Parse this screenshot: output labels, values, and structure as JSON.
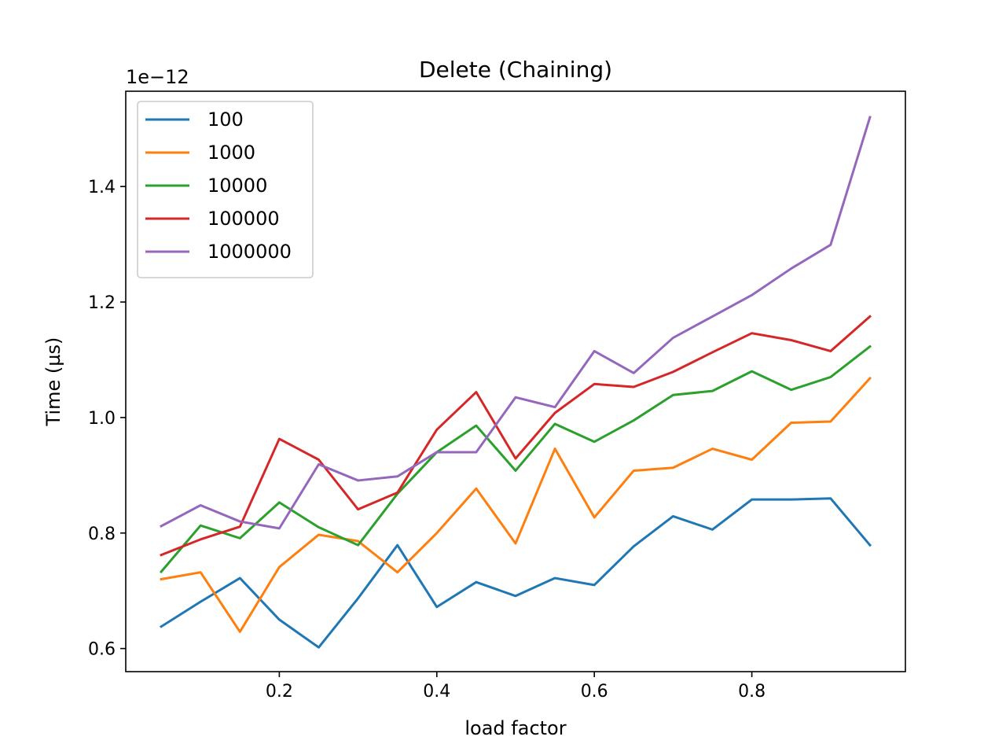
{
  "chart_data": {
    "type": "line",
    "title": "Delete (Chaining)",
    "xlabel": "load factor",
    "ylabel": "Time (µs)",
    "y_offset_text": "1e−12",
    "xlim": [
      0.005,
      0.995
    ],
    "ylim": [
      0.56,
      1.565
    ],
    "x_ticks": [
      0.2,
      0.4,
      0.6,
      0.8
    ],
    "x_tick_labels": [
      "0.2",
      "0.4",
      "0.6",
      "0.8"
    ],
    "y_ticks": [
      0.6,
      0.8,
      1.0,
      1.2,
      1.4
    ],
    "y_tick_labels": [
      "0.6",
      "0.8",
      "1.0",
      "1.2",
      "1.4"
    ],
    "grid": false,
    "legend_position": "top-left",
    "x": [
      0.05,
      0.1,
      0.15,
      0.2,
      0.25,
      0.3,
      0.35,
      0.4,
      0.45,
      0.5,
      0.55,
      0.6,
      0.65,
      0.7,
      0.75,
      0.8,
      0.85,
      0.9,
      0.95
    ],
    "series": [
      {
        "name": "100",
        "color": "#1f77b4",
        "values": [
          0.638,
          0.681,
          0.722,
          0.65,
          0.602,
          0.687,
          0.779,
          0.672,
          0.715,
          0.691,
          0.722,
          0.71,
          0.777,
          0.829,
          0.806,
          0.858,
          0.858,
          0.86,
          0.779
        ]
      },
      {
        "name": "1000",
        "color": "#ff7f0e",
        "values": [
          0.72,
          0.732,
          0.629,
          0.741,
          0.797,
          0.786,
          0.732,
          0.8,
          0.877,
          0.782,
          0.946,
          0.827,
          0.908,
          0.913,
          0.946,
          0.927,
          0.991,
          0.993,
          1.068
        ]
      },
      {
        "name": "10000",
        "color": "#2ca02c",
        "values": [
          0.733,
          0.813,
          0.791,
          0.853,
          0.81,
          0.779,
          0.868,
          0.94,
          0.986,
          0.908,
          0.989,
          0.958,
          0.995,
          1.039,
          1.046,
          1.08,
          1.048,
          1.07,
          1.123
        ]
      },
      {
        "name": "100000",
        "color": "#d62728",
        "values": [
          0.762,
          0.789,
          0.811,
          0.963,
          0.927,
          0.841,
          0.87,
          0.979,
          1.044,
          0.929,
          1.008,
          1.058,
          1.053,
          1.079,
          1.113,
          1.146,
          1.134,
          1.115,
          1.175
        ]
      },
      {
        "name": "1000000",
        "color": "#9467bd",
        "values": [
          0.812,
          0.848,
          0.82,
          0.808,
          0.919,
          0.891,
          0.898,
          0.94,
          0.94,
          1.035,
          1.018,
          1.115,
          1.077,
          1.138,
          1.175,
          1.212,
          1.258,
          1.299,
          1.52
        ]
      }
    ]
  }
}
